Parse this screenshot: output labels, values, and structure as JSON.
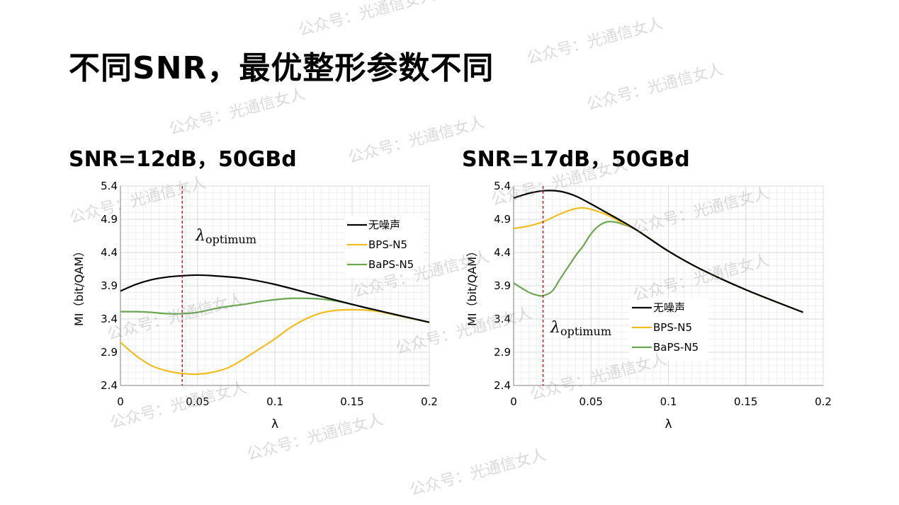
{
  "slide": {
    "title": "不同SNR，最优整形参数不同",
    "subtitle_left": "SNR=12dB，50GBd",
    "subtitle_right": "SNR=17dB，50GBd",
    "watermark": "公众号：光通信女人"
  },
  "colors": {
    "noiseless": "#000000",
    "bps": "#f2bc1c",
    "baps": "#6aa84f",
    "marker": "#c00000",
    "grid": "#d9d9d9"
  },
  "chart_data": [
    {
      "type": "line",
      "title": "",
      "xlabel": "λ",
      "ylabel": "MI（bit/QAM）",
      "xlim": [
        0,
        0.2
      ],
      "ylim": [
        2.4,
        5.4
      ],
      "xticks": [
        0,
        0.05,
        0.1,
        0.15,
        0.2
      ],
      "xtick_labels": [
        "0",
        "0.05",
        "0.1",
        "0.15",
        "0.2"
      ],
      "yticks": [
        2.4,
        2.9,
        3.4,
        3.9,
        4.4,
        4.9,
        5.4
      ],
      "ytick_labels": [
        "2.4",
        "2.9",
        "3.4",
        "3.9",
        "4.4",
        "4.9",
        "5.4"
      ],
      "grid": true,
      "legend_position": "top-right",
      "marker_line": {
        "x": 0.04,
        "label_main": "λ",
        "label_sub": "optimum"
      },
      "series": [
        {
          "name": "无噪声",
          "x": [
            0,
            0.01,
            0.02,
            0.03,
            0.04,
            0.05,
            0.06,
            0.08,
            0.1,
            0.12,
            0.13,
            0.15,
            0.17,
            0.2
          ],
          "y": [
            3.82,
            3.92,
            3.99,
            4.03,
            4.05,
            4.06,
            4.05,
            4.01,
            3.92,
            3.8,
            3.74,
            3.62,
            3.51,
            3.35
          ]
        },
        {
          "name": "BPS-N5",
          "x": [
            0,
            0.01,
            0.02,
            0.03,
            0.04,
            0.05,
            0.06,
            0.07,
            0.08,
            0.09,
            0.1,
            0.11,
            0.12,
            0.13,
            0.14,
            0.15,
            0.16,
            0.17,
            0.2
          ],
          "y": [
            3.05,
            2.85,
            2.7,
            2.62,
            2.58,
            2.57,
            2.6,
            2.67,
            2.8,
            2.95,
            3.1,
            3.27,
            3.4,
            3.49,
            3.53,
            3.54,
            3.53,
            3.5,
            3.35
          ]
        },
        {
          "name": "BaPS-N5",
          "x": [
            0,
            0.01,
            0.02,
            0.03,
            0.04,
            0.05,
            0.06,
            0.07,
            0.08,
            0.09,
            0.1,
            0.11,
            0.12,
            0.13,
            0.14,
            0.15,
            0.16,
            0.17,
            0.2
          ],
          "y": [
            3.51,
            3.51,
            3.5,
            3.48,
            3.48,
            3.5,
            3.55,
            3.59,
            3.62,
            3.66,
            3.69,
            3.71,
            3.71,
            3.7,
            3.67,
            3.62,
            3.56,
            3.5,
            3.35
          ]
        }
      ]
    },
    {
      "type": "line",
      "title": "",
      "xlabel": "λ",
      "ylabel": "MI（bit/QAM）",
      "xlim": [
        0,
        0.2
      ],
      "ylim": [
        2.4,
        5.4
      ],
      "xticks": [
        0,
        0.05,
        0.1,
        0.15,
        0.2
      ],
      "xtick_labels": [
        "0",
        "0.05",
        "0.1",
        "0.15",
        "0.2"
      ],
      "yticks": [
        2.4,
        2.9,
        3.4,
        3.9,
        4.4,
        4.9,
        5.4
      ],
      "ytick_labels": [
        "2.4",
        "2.9",
        "3.4",
        "3.9",
        "4.4",
        "4.9",
        "5.4"
      ],
      "grid": true,
      "legend_position": "bottom-center",
      "marker_line": {
        "x": 0.019,
        "label_main": "λ",
        "label_sub": "optimum"
      },
      "series": [
        {
          "name": "无噪声",
          "x": [
            0,
            0.01,
            0.02,
            0.03,
            0.04,
            0.05,
            0.06,
            0.07,
            0.08,
            0.1,
            0.12,
            0.15,
            0.187
          ],
          "y": [
            5.22,
            5.29,
            5.33,
            5.32,
            5.25,
            5.13,
            5.0,
            4.87,
            4.73,
            4.42,
            4.16,
            3.84,
            3.5
          ]
        },
        {
          "name": "BPS-N5",
          "x": [
            0,
            0.01,
            0.02,
            0.03,
            0.04,
            0.045,
            0.05,
            0.06,
            0.07,
            0.08,
            0.1,
            0.12,
            0.15,
            0.187
          ],
          "y": [
            4.76,
            4.8,
            4.87,
            4.98,
            5.06,
            5.07,
            5.05,
            4.97,
            4.85,
            4.73,
            4.42,
            4.16,
            3.84,
            3.5
          ]
        },
        {
          "name": "BaPS-N5",
          "x": [
            0,
            0.01,
            0.015,
            0.019,
            0.025,
            0.03,
            0.04,
            0.045,
            0.05,
            0.055,
            0.06,
            0.065,
            0.07,
            0.08,
            0.1,
            0.12,
            0.15,
            0.187
          ],
          "y": [
            3.94,
            3.8,
            3.76,
            3.75,
            3.82,
            4.0,
            4.35,
            4.5,
            4.68,
            4.8,
            4.86,
            4.86,
            4.83,
            4.73,
            4.42,
            4.16,
            3.84,
            3.5
          ]
        }
      ]
    }
  ]
}
